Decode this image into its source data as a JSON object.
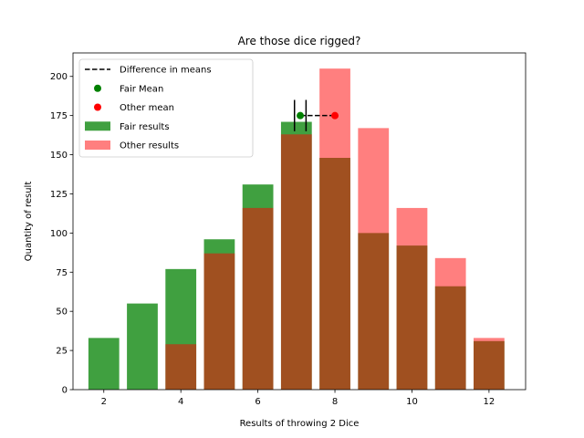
{
  "chart_data": {
    "type": "bar",
    "title": "Are those dice rigged?",
    "xlabel": "Results of throwing 2 Dice",
    "ylabel": "Quantity of result",
    "xlim": [
      1.2,
      12.95
    ],
    "ylim": [
      0,
      215
    ],
    "xticks": [
      2,
      4,
      6,
      8,
      10,
      12
    ],
    "yticks": [
      0,
      25,
      50,
      75,
      100,
      125,
      150,
      175,
      200
    ],
    "categories": [
      2,
      3,
      4,
      5,
      6,
      7,
      8,
      9,
      10,
      11,
      12
    ],
    "series": [
      {
        "name": "Fair results",
        "color": "#008000",
        "alpha": 0.75,
        "values": [
          33,
          55,
          77,
          96,
          131,
          171,
          148,
          100,
          92,
          66,
          31
        ]
      },
      {
        "name": "Other results",
        "color": "#ff0000",
        "alpha": 0.5,
        "values": [
          0,
          0,
          29,
          87,
          116,
          163,
          205,
          167,
          116,
          84,
          33
        ]
      }
    ],
    "means": [
      {
        "name": "Fair Mean",
        "color": "#008000",
        "x": 7.1,
        "y": 175
      },
      {
        "name": "Other mean",
        "color": "#ff0000",
        "x": 8.0,
        "y": 175
      }
    ],
    "difference": {
      "name": "Difference in means",
      "x1": 7.1,
      "x2": 8.0,
      "y": 175,
      "cap_half_height": 10
    },
    "legend": {
      "placement": "upper-left",
      "entries": [
        "Difference in means",
        "Fair Mean",
        "Other mean",
        "Fair results",
        "Other results"
      ]
    },
    "grid": false
  }
}
